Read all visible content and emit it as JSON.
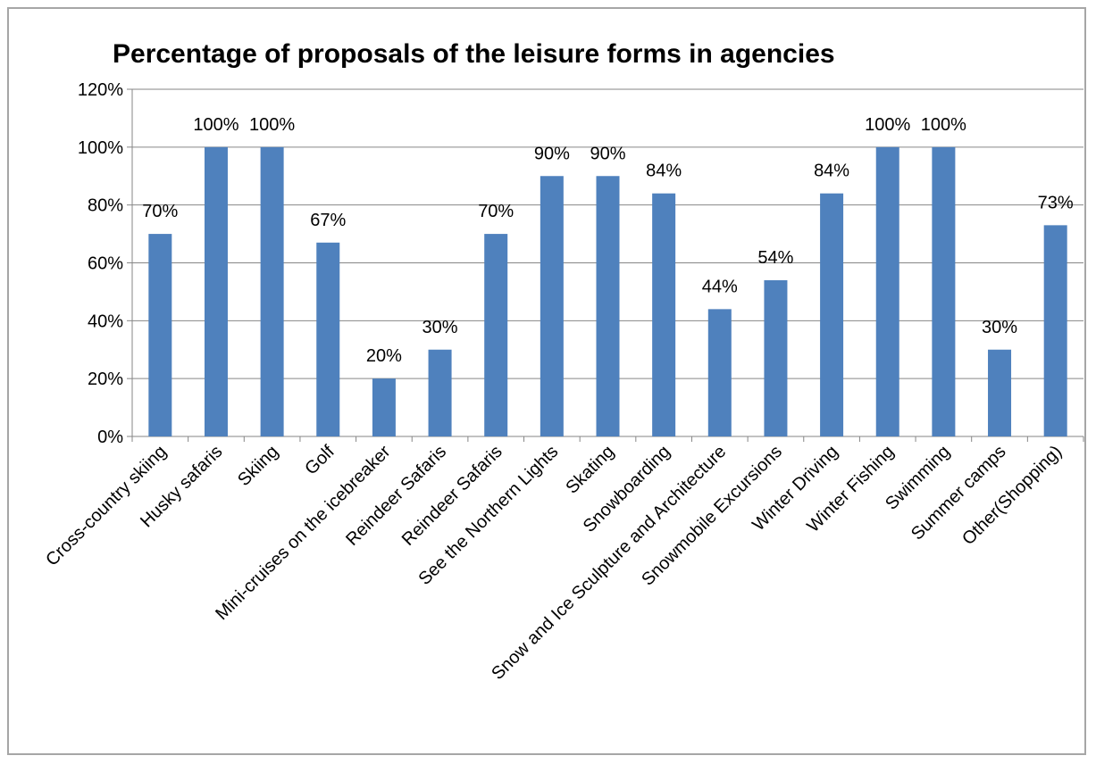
{
  "colors": {
    "bar": "#4f81bd",
    "grid": "#868686",
    "axis": "#868686",
    "frame": "#a6a6a6"
  },
  "chart_data": {
    "type": "bar",
    "title": "Percentage of proposals of the leisure forms in agencies",
    "xlabel": "",
    "ylabel": "",
    "ylim": [
      0,
      120
    ],
    "yticks": [
      "0%",
      "20%",
      "40%",
      "60%",
      "80%",
      "100%",
      "120%"
    ],
    "grid": true,
    "legend": "none",
    "categories": [
      "Cross-country skiing",
      "Husky safaris",
      "Skiing",
      "Golf",
      "Mini-cruises on the icebreaker",
      "Reindeer Safaris",
      "Reindeer Safaris",
      "See the Northern Lights",
      "Skating",
      "Snowboarding",
      "Snow and Ice Sculpture and Architecture",
      "Snowmobile Excursions",
      "Winter Driving",
      "Winter Fishing",
      "Swimming",
      "Summer camps",
      "Other(Shopping)"
    ],
    "values": [
      70,
      100,
      100,
      67,
      20,
      30,
      70,
      90,
      90,
      84,
      44,
      54,
      84,
      100,
      100,
      30,
      73
    ],
    "data_labels": [
      "70%",
      "100%",
      "100%",
      "67%",
      "20%",
      "30%",
      "70%",
      "90%",
      "90%",
      "84%",
      "44%",
      "54%",
      "84%",
      "100%",
      "100%",
      "30%",
      "73%"
    ]
  }
}
